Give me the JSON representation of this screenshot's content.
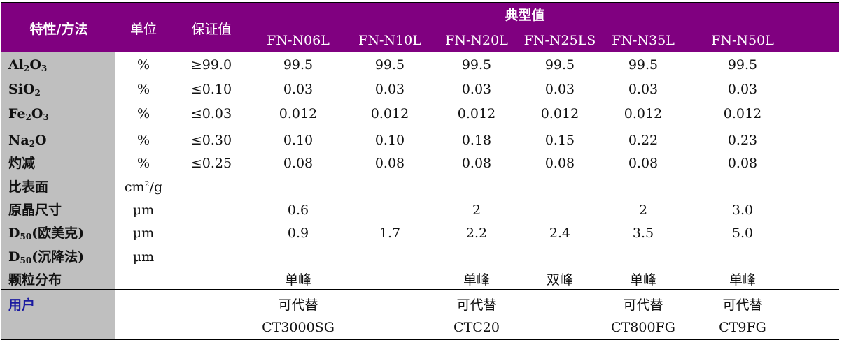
{
  "header": {
    "property": "特性/方法",
    "unit": "单位",
    "guarantee": "保证值",
    "typical": "典型值",
    "grades": [
      "FN-N06L",
      "FN-N10L",
      "FN-N20L",
      "FN-N25LS",
      "FN-N35L",
      "FN-N50L"
    ]
  },
  "rows": [
    {
      "label_parts": [
        {
          "t": "Al"
        },
        {
          "t": "2",
          "sub": true
        },
        {
          "t": "O"
        },
        {
          "t": "3",
          "sub": true
        }
      ],
      "unit": "%",
      "guarantee": "≥99.0",
      "values": [
        "99.5",
        "99.5",
        "99.5",
        "99.5",
        "99.5",
        "99.5"
      ]
    },
    {
      "label_parts": [
        {
          "t": "SiO"
        },
        {
          "t": "2",
          "sub": true
        }
      ],
      "unit": "%",
      "guarantee": "≤0.10",
      "values": [
        "0.03",
        "0.03",
        "0.03",
        "0.03",
        "0.03",
        "0.03"
      ]
    },
    {
      "label_parts": [
        {
          "t": "Fe"
        },
        {
          "t": "2",
          "sub": true
        },
        {
          "t": "O"
        },
        {
          "t": "3",
          "sub": true
        }
      ],
      "unit": "%",
      "guarantee": "≤0.03",
      "values": [
        "0.012",
        "0.012",
        "0.012",
        "0.012",
        "0.012",
        "0.012"
      ]
    },
    {
      "label_parts": [
        {
          "t": "Na"
        },
        {
          "t": "2",
          "sub": true
        },
        {
          "t": "O"
        }
      ],
      "unit": "%",
      "guarantee": "≤0.30",
      "values": [
        "0.10",
        "0.10",
        "0.18",
        "0.15",
        "0.22",
        "0.23"
      ]
    },
    {
      "label_parts": [
        {
          "t": "灼减"
        }
      ],
      "unit": "%",
      "guarantee": "≤0.25",
      "values": [
        "0.08",
        "0.08",
        "0.08",
        "0.08",
        "0.08",
        "0.08"
      ]
    },
    {
      "label_parts": [
        {
          "t": "比表面"
        }
      ],
      "unit_parts": [
        {
          "t": "cm"
        },
        {
          "t": "2",
          "sup": true
        },
        {
          "t": "/g"
        }
      ],
      "unit": "",
      "guarantee": "",
      "values": [
        "",
        "",
        "",
        "",
        "",
        ""
      ]
    },
    {
      "label_parts": [
        {
          "t": "原晶尺寸"
        }
      ],
      "unit": "μm",
      "guarantee": "",
      "values": [
        "0.6",
        "",
        "2",
        "",
        "2",
        "3.0"
      ]
    },
    {
      "label_parts": [
        {
          "t": "D"
        },
        {
          "t": "50",
          "sub": true
        },
        {
          "t": "(欧美克)"
        }
      ],
      "unit": "μm",
      "guarantee": "",
      "values": [
        "0.9",
        "1.7",
        "2.2",
        "2.4",
        "3.5",
        "5.0"
      ]
    },
    {
      "label_parts": [
        {
          "t": "D"
        },
        {
          "t": "50",
          "sub": true
        },
        {
          "t": "(沉降法)"
        }
      ],
      "unit": "μm",
      "guarantee": "",
      "values": [
        "",
        "",
        "",
        "",
        "",
        ""
      ]
    },
    {
      "label_parts": [
        {
          "t": "颗粒分布"
        }
      ],
      "unit": "",
      "guarantee": "",
      "values": [
        "单峰",
        "",
        "单峰",
        "双峰",
        "单峰",
        "单峰"
      ]
    }
  ],
  "user_row": {
    "label": "用户",
    "replace_values": [
      "可代替",
      "",
      "可代替",
      "",
      "可代替",
      "可代替"
    ],
    "product_values": [
      "CT3000SG",
      "",
      "CTC20",
      "",
      "CT800FG",
      "CT9FG"
    ]
  }
}
